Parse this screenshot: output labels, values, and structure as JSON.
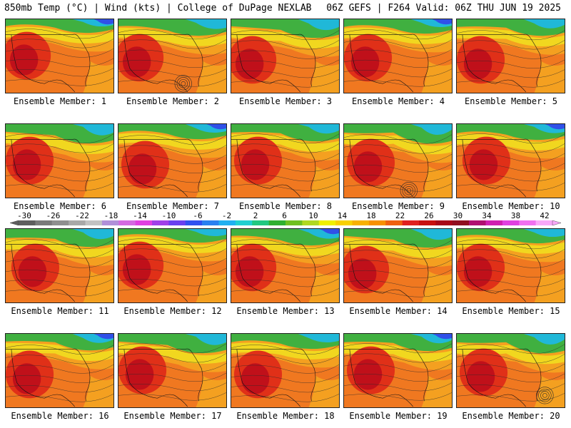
{
  "header": {
    "left": "850mb Temp (°C) | Wind (kts) | College of DuPage NEXLAB",
    "right": "06Z GEFS | F264 Valid: 06Z THU JUN 19 2025"
  },
  "panels": [
    {
      "label": "Ensemble Member: 1"
    },
    {
      "label": "Ensemble Member: 2"
    },
    {
      "label": "Ensemble Member: 3"
    },
    {
      "label": "Ensemble Member: 4"
    },
    {
      "label": "Ensemble Member: 5"
    },
    {
      "label": "Ensemble Member: 6"
    },
    {
      "label": "Ensemble Member: 7"
    },
    {
      "label": "Ensemble Member: 8"
    },
    {
      "label": "Ensemble Member: 9"
    },
    {
      "label": "Ensemble Member: 10"
    },
    {
      "label": "Ensemble Member: 11"
    },
    {
      "label": "Ensemble Member: 12"
    },
    {
      "label": "Ensemble Member: 13"
    },
    {
      "label": "Ensemble Member: 14"
    },
    {
      "label": "Ensemble Member: 15"
    },
    {
      "label": "Ensemble Member: 16"
    },
    {
      "label": "Ensemble Member: 17"
    },
    {
      "label": "Ensemble Member: 18"
    },
    {
      "label": "Ensemble Member: 19"
    },
    {
      "label": "Ensemble Member: 20"
    }
  ],
  "colorbar": {
    "ticks": [
      "-30",
      "-26",
      "-22",
      "-18",
      "-14",
      "-10",
      "-6",
      "-2",
      "2",
      "6",
      "10",
      "14",
      "18",
      "22",
      "26",
      "30",
      "34",
      "38",
      "42"
    ],
    "colors": [
      "#5e5e5e",
      "#7a7a7a",
      "#8f8f8f",
      "#a8a8a8",
      "#c2c2c2",
      "#b08fd8",
      "#d46ae0",
      "#e040e0",
      "#a040e8",
      "#6a40f0",
      "#3050f0",
      "#2a80f0",
      "#20b0f0",
      "#20d0d0",
      "#20c880",
      "#30b030",
      "#70c020",
      "#b0d820",
      "#f0f000",
      "#f8d000",
      "#f8b000",
      "#f89000",
      "#f06010",
      "#e02020",
      "#c81010",
      "#a80818",
      "#901020",
      "#b01070",
      "#d020b0",
      "#e040e0",
      "#f070f0",
      "#f8a8f8"
    ]
  },
  "map_colors": {
    "hot_core": "#c0101a",
    "hot": "#e03018",
    "warm": "#f07820",
    "mild": "#f4a020",
    "yellow": "#f0e020",
    "green": "#40b040",
    "cyan": "#20b8d8",
    "blue": "#3050e8",
    "contour": "#2a2a2a",
    "boundary": "#111111"
  }
}
